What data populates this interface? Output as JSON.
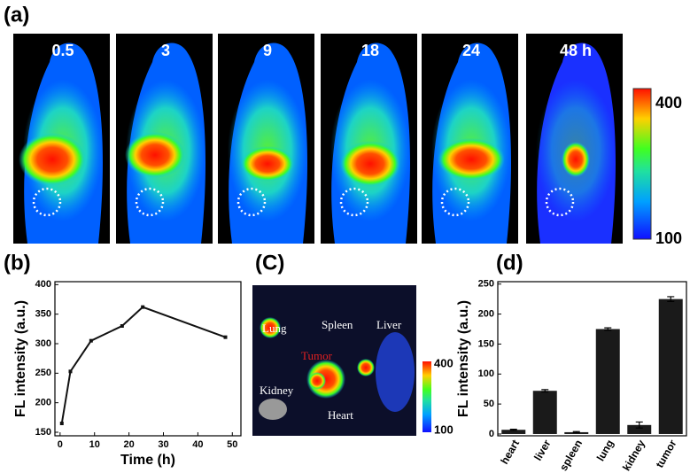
{
  "figure": {
    "panel_labels": [
      "(a)",
      "(b)",
      "(C)",
      "(d)"
    ],
    "timepoints": [
      "0.5",
      "3",
      "9",
      "18",
      "24",
      "48 h"
    ],
    "colorbar_labels": [
      "400",
      "100"
    ],
    "organs": [
      "Lung",
      "Spleen",
      "Liver",
      "Tumor",
      "Kidney",
      "Heart"
    ],
    "organ_colorbar_labels": [
      "400",
      "100"
    ]
  },
  "chart_data": [
    {
      "type": "line",
      "x_label": "Time (h)",
      "y_label": "FL intensity (a.u.)",
      "x": [
        0.5,
        3,
        9,
        18,
        24,
        48
      ],
      "values": [
        165,
        253,
        305,
        330,
        362,
        311
      ],
      "color": "#111111",
      "xlim": [
        -1.5,
        52.5
      ],
      "xticks": [
        0,
        10,
        20,
        30,
        40,
        50
      ],
      "ylim": [
        144,
        405
      ],
      "yticks": [
        150,
        200,
        250,
        300,
        350,
        400
      ]
    },
    {
      "type": "bar",
      "y_label": "FL intensity (a.u.)",
      "categories": [
        "heart",
        "liver",
        "spleen",
        "lung",
        "kidney",
        "tumor"
      ],
      "values": [
        7,
        72,
        3,
        175,
        15,
        225
      ],
      "errors": [
        1,
        2,
        1,
        2,
        5,
        4
      ],
      "color": "#1a1a1a",
      "ylim": [
        -3,
        254
      ],
      "yticks": [
        0,
        50,
        100,
        150,
        200,
        250
      ]
    }
  ]
}
